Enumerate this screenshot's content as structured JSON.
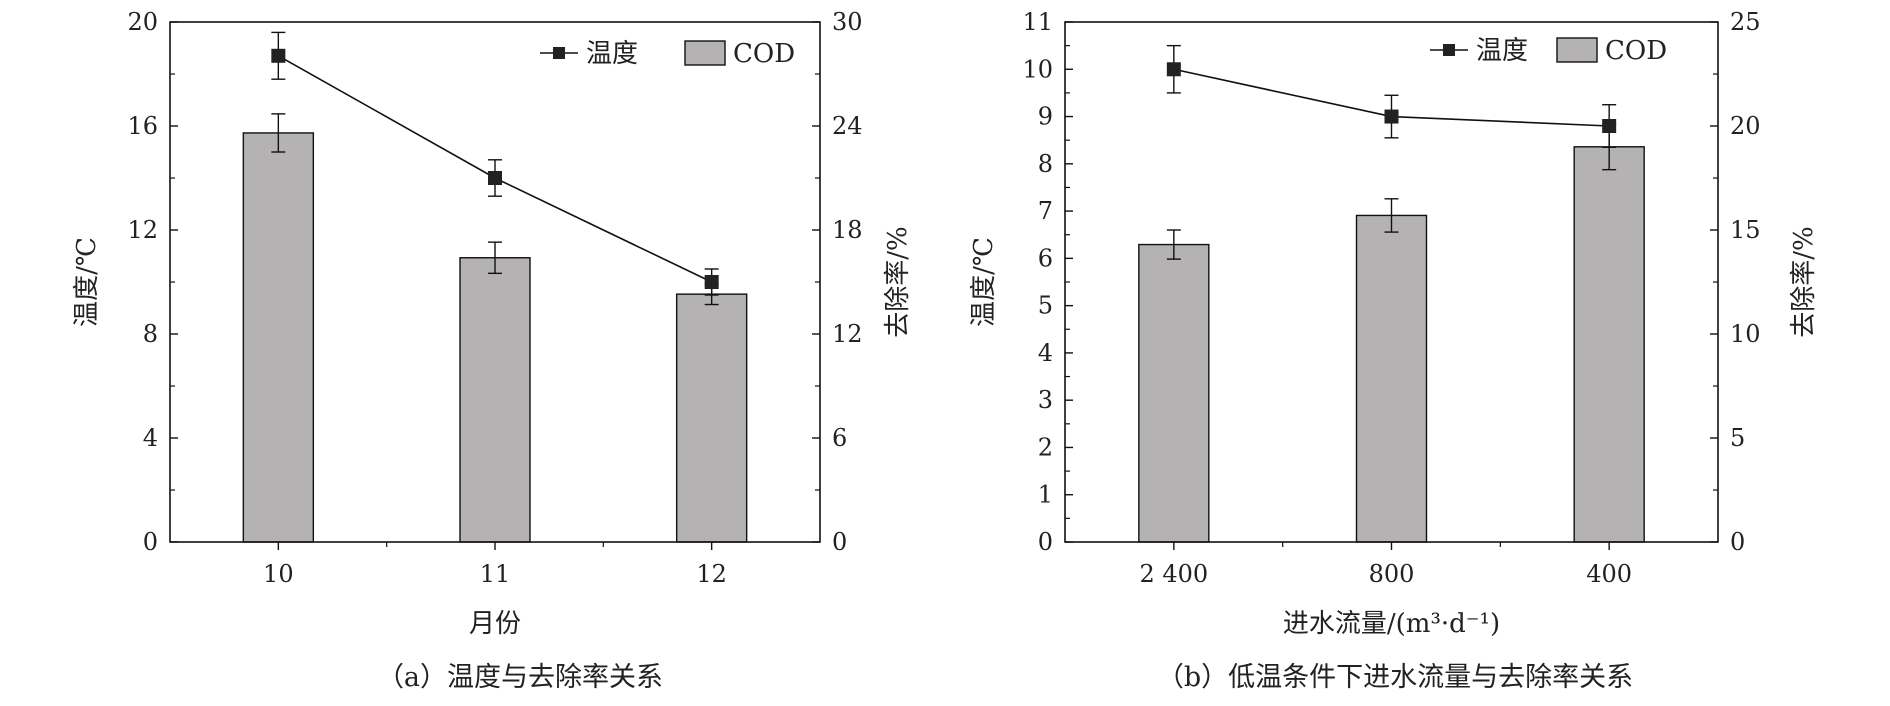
{
  "chart_data": [
    {
      "type": "bar+line",
      "caption": "（a）温度与去除率关系",
      "xlabel": "月份",
      "ylabel_left": "温度/℃",
      "ylabel_right": "去除率/%",
      "categories": [
        "10",
        "11",
        "12"
      ],
      "ylim_left": [
        0,
        20
      ],
      "yticks_left": [
        0,
        4,
        8,
        12,
        16,
        20
      ],
      "ylim_right": [
        0,
        30
      ],
      "yticks_right": [
        0,
        6,
        12,
        18,
        24,
        30
      ],
      "legend_placement": "top-right",
      "grid": false,
      "series": [
        {
          "name": "温度",
          "kind": "line",
          "axis": "left",
          "values": [
            18.7,
            14.0,
            10.0
          ],
          "errors": [
            0.9,
            0.7,
            0.5
          ]
        },
        {
          "name": "COD",
          "kind": "bar",
          "axis": "right",
          "values": [
            23.6,
            16.4,
            14.3
          ],
          "errors": [
            1.1,
            0.9,
            0.6
          ]
        }
      ]
    },
    {
      "type": "bar+line",
      "caption": "（b）低温条件下进水流量与去除率关系",
      "xlabel": "进水流量/(m³·d⁻¹)",
      "ylabel_left": "温度/℃",
      "ylabel_right": "去除率/%",
      "categories": [
        "2 400",
        "800",
        "400"
      ],
      "ylim_left": [
        0,
        11
      ],
      "yticks_left": [
        0,
        1,
        2,
        3,
        4,
        5,
        6,
        7,
        8,
        9,
        10,
        11
      ],
      "ylim_right": [
        0,
        25
      ],
      "yticks_right": [
        0,
        5,
        10,
        15,
        20,
        25
      ],
      "legend_placement": "top-right",
      "grid": false,
      "series": [
        {
          "name": "温度",
          "kind": "line",
          "axis": "left",
          "values": [
            10.0,
            9.0,
            8.8
          ],
          "errors": [
            0.5,
            0.45,
            0.45
          ]
        },
        {
          "name": "COD",
          "kind": "bar",
          "axis": "right",
          "values": [
            14.3,
            15.7,
            19.0
          ],
          "errors": [
            0.7,
            0.8,
            1.1
          ]
        }
      ]
    }
  ]
}
